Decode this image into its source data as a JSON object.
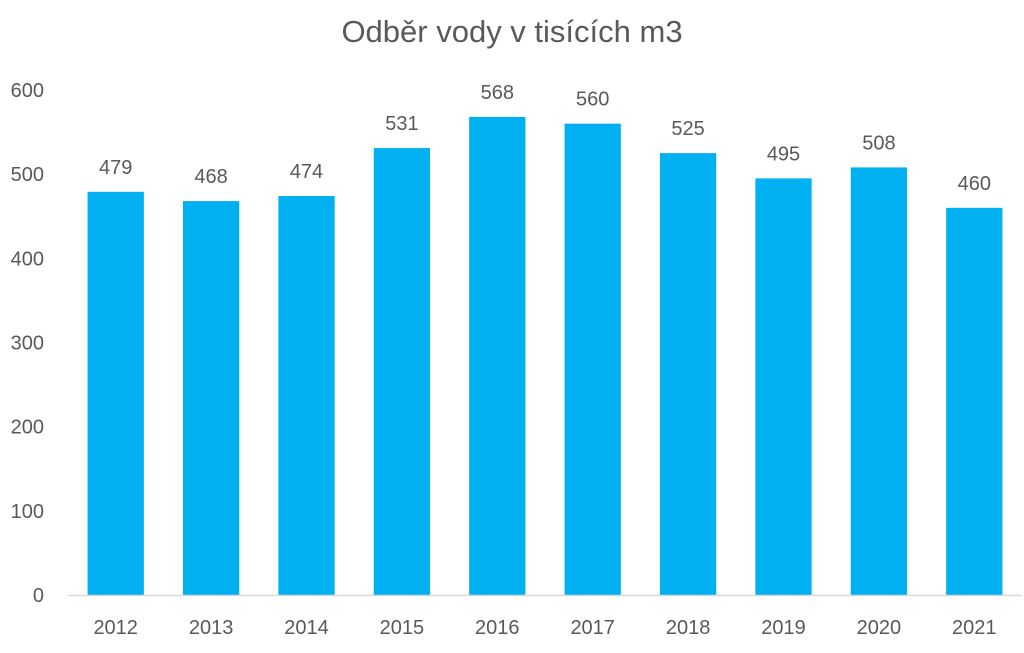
{
  "chart_data": {
    "type": "bar",
    "title": "Odběr vody v tisících m3",
    "categories": [
      "2012",
      "2013",
      "2014",
      "2015",
      "2016",
      "2017",
      "2018",
      "2019",
      "2020",
      "2021"
    ],
    "values": [
      479,
      468,
      474,
      531,
      568,
      560,
      525,
      495,
      508,
      460
    ],
    "xlabel": "",
    "ylabel": "",
    "ylim": [
      0,
      600
    ],
    "yticks": [
      0,
      100,
      200,
      300,
      400,
      500,
      600
    ],
    "grid": false,
    "legend": "none",
    "data_labels": true
  },
  "colors": {
    "bar": "#00B0F0",
    "text": "#595959",
    "axis": "#D9D9D9"
  }
}
